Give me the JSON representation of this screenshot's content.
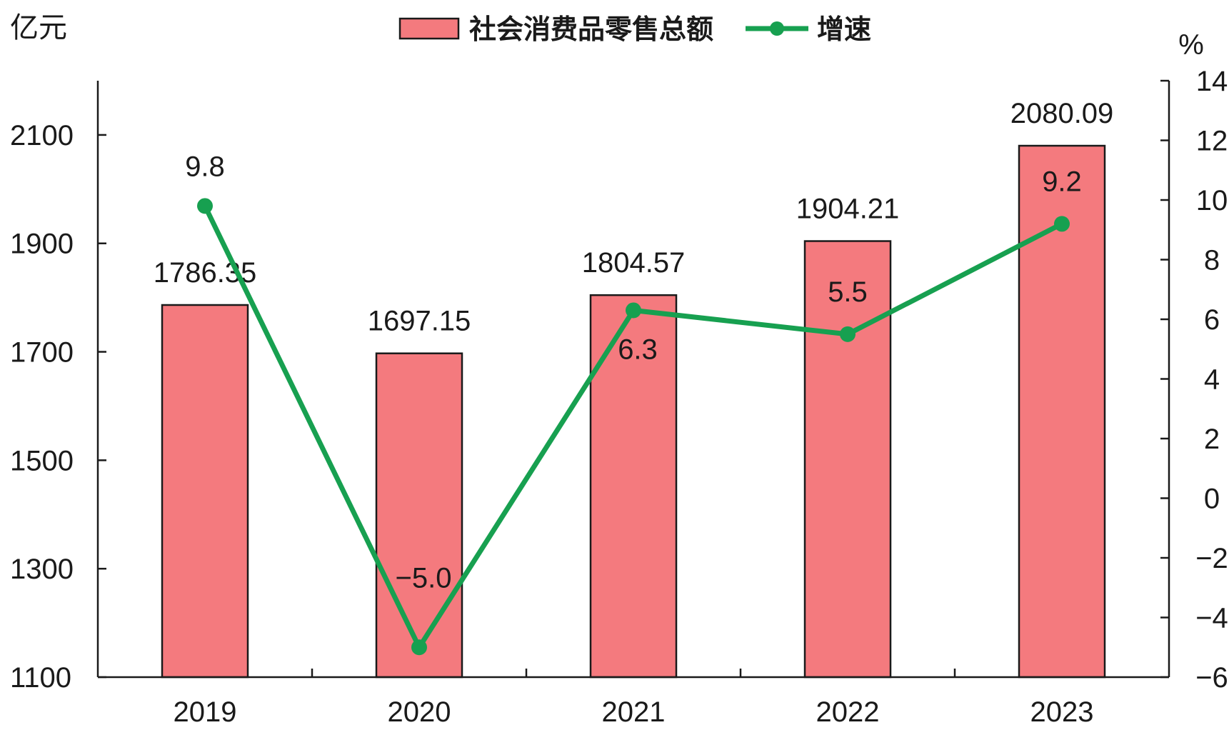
{
  "chart_data": {
    "type": "bar",
    "categories": [
      "2019",
      "2020",
      "2021",
      "2022",
      "2023"
    ],
    "series": [
      {
        "name": "社会消费品零售总额",
        "type": "bar",
        "axis": "left",
        "values": [
          1786.35,
          1697.15,
          1804.57,
          1904.21,
          2080.09
        ],
        "labels": [
          "1786.35",
          "1697.15",
          "1804.57",
          "1904.21",
          "2080.09"
        ],
        "color": "#f47a7e"
      },
      {
        "name": "增速",
        "type": "line",
        "axis": "right",
        "values": [
          9.8,
          -5.0,
          6.3,
          5.5,
          9.2
        ],
        "labels": [
          "9.8",
          "−5.0",
          "6.3",
          "5.5",
          "9.2"
        ],
        "color": "#17a050"
      }
    ],
    "left_axis": {
      "unit": "亿元",
      "ylim": [
        1100,
        2200
      ],
      "ticks": [
        1100,
        1300,
        1500,
        1700,
        1900,
        2100
      ],
      "tick_labels": [
        "1100",
        "1300",
        "1500",
        "1700",
        "1900",
        "2100"
      ]
    },
    "right_axis": {
      "unit": "%",
      "ylim": [
        -6,
        14
      ],
      "ticks": [
        -6,
        -4,
        -2,
        0,
        2,
        4,
        6,
        8,
        10,
        12,
        14
      ],
      "tick_labels": [
        "−6",
        "−4",
        "−2",
        "0",
        "2",
        "4",
        "6",
        "8",
        "10",
        "12",
        "14"
      ]
    },
    "legend_position": "top-center",
    "grid": false
  }
}
